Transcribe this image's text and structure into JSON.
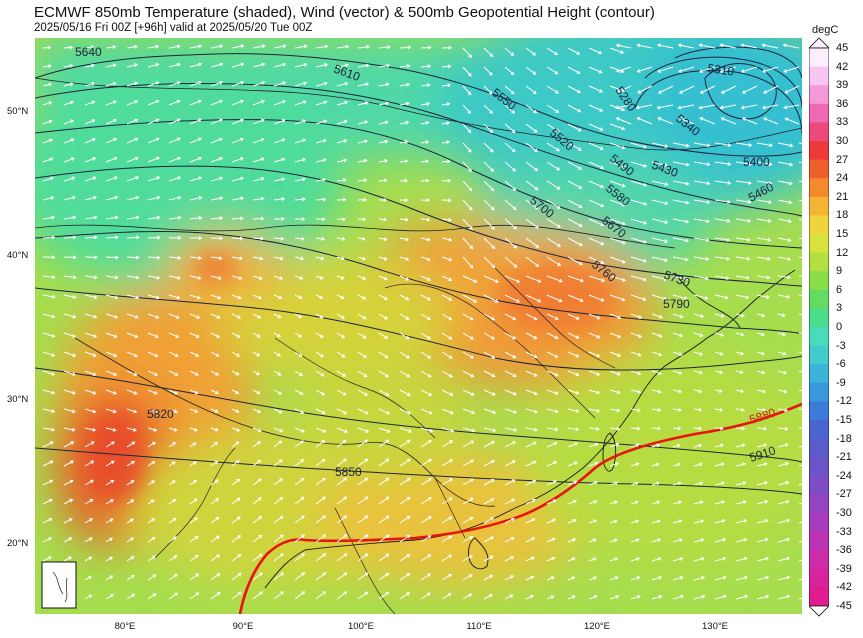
{
  "header": {
    "title": "ECMWF 850mb Temperature (shaded), Wind (vector) & 500mb Geopotential Height (contour)",
    "subtitle": "2025/05/16 Fri 00Z [+96h] valid at 2025/05/20 Tue 00Z"
  },
  "axes": {
    "lat_ticks": [
      "50°N",
      "40°N",
      "30°N",
      "20°N"
    ],
    "lon_ticks": [
      "80°E",
      "90°E",
      "100°E",
      "110°E",
      "120°E",
      "130°E"
    ]
  },
  "colorbar": {
    "unit": "degC",
    "labels": [
      "45",
      "42",
      "39",
      "36",
      "33",
      "30",
      "27",
      "24",
      "21",
      "18",
      "15",
      "12",
      "9",
      "6",
      "3",
      "0",
      "-3",
      "-6",
      "-9",
      "-12",
      "-15",
      "-18",
      "-21",
      "-24",
      "-27",
      "-30",
      "-33",
      "-36",
      "-39",
      "-42",
      "-45"
    ]
  },
  "contours": {
    "labels": [
      "5640",
      "5610",
      "5550",
      "5520",
      "5490",
      "5460",
      "5430",
      "5400",
      "5340",
      "5310",
      "5280",
      "5580",
      "5700",
      "5670",
      "5760",
      "5730",
      "5790",
      "5820",
      "5850",
      "5910"
    ],
    "ridge_label": "5880",
    "ridge_color": "#e8140f"
  },
  "colors": {
    "cold": "#38c9c4",
    "cool": "#5be08c",
    "mild": "#b8e23c",
    "warm": "#f0c840",
    "hot": "#f07a30",
    "very_hot": "#e84a2a"
  }
}
